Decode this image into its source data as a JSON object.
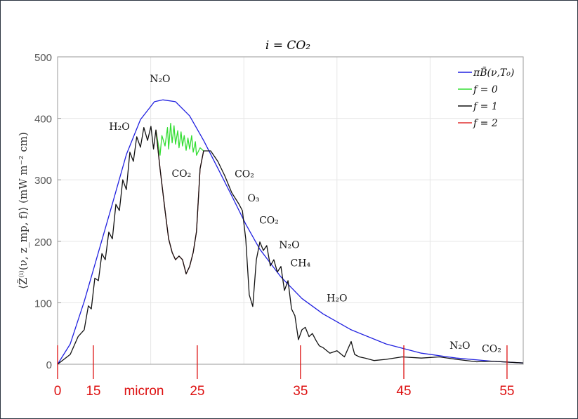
{
  "chart_data": {
    "type": "line",
    "title": "i = CO₂",
    "xlabel": "",
    "ylabel": "⟨Z̃⁽ⁱ⁾(ν, z_mp, f)⟩ (mW m⁻² cm)",
    "xlim": [
      0,
      2500
    ],
    "ylim": [
      0,
      500
    ],
    "yticks": [
      0,
      100,
      200,
      300,
      400,
      500
    ],
    "xgrid": [
      500,
      1000,
      1500,
      2000
    ],
    "grid": true,
    "legend_position": "top-right",
    "series": [
      {
        "name": "πB̃(ν,T₀)",
        "color": "#2020e0",
        "points": [
          [
            0,
            0
          ],
          [
            68,
            33
          ],
          [
            143,
            102
          ],
          [
            219,
            182
          ],
          [
            294,
            261
          ],
          [
            369,
            341
          ],
          [
            445,
            398
          ],
          [
            520,
            427
          ],
          [
            566,
            430
          ],
          [
            633,
            427
          ],
          [
            709,
            404
          ],
          [
            784,
            364
          ],
          [
            860,
            319
          ],
          [
            935,
            274
          ],
          [
            1010,
            228
          ],
          [
            1086,
            187
          ],
          [
            1199,
            142
          ],
          [
            1312,
            107
          ],
          [
            1425,
            82
          ],
          [
            1576,
            56
          ],
          [
            1764,
            33
          ],
          [
            1953,
            18
          ],
          [
            2141,
            10
          ],
          [
            2330,
            5
          ],
          [
            2500,
            2
          ]
        ]
      },
      {
        "name": "f = 0",
        "color": "#33dd33",
        "points": [
          [
            528,
            381
          ],
          [
            550,
            340
          ],
          [
            560,
            372
          ],
          [
            577,
            355
          ],
          [
            590,
            385
          ],
          [
            596,
            350
          ],
          [
            607,
            392
          ],
          [
            615,
            360
          ],
          [
            625,
            388
          ],
          [
            633,
            358
          ],
          [
            645,
            380
          ],
          [
            652,
            352
          ],
          [
            663,
            378
          ],
          [
            671,
            355
          ],
          [
            680,
            372
          ],
          [
            690,
            348
          ],
          [
            700,
            368
          ],
          [
            709,
            350
          ],
          [
            720,
            372
          ],
          [
            728,
            345
          ],
          [
            740,
            362
          ],
          [
            746,
            340
          ],
          [
            765,
            352
          ],
          [
            784,
            347
          ]
        ]
      },
      {
        "name": "f = 2",
        "color": "#e03030",
        "points": [
          [
            528,
            381
          ],
          [
            550,
            318
          ],
          [
            577,
            250
          ],
          [
            596,
            204
          ],
          [
            615,
            182
          ],
          [
            633,
            170
          ],
          [
            652,
            176
          ],
          [
            671,
            170
          ],
          [
            690,
            147
          ],
          [
            709,
            159
          ],
          [
            728,
            182
          ],
          [
            746,
            216
          ],
          [
            765,
            318
          ],
          [
            784,
            347
          ]
        ]
      },
      {
        "name": "f = 1",
        "color": "#111111",
        "points": [
          [
            0,
            0
          ],
          [
            68,
            16
          ],
          [
            110,
            45
          ],
          [
            143,
            56
          ],
          [
            165,
            95
          ],
          [
            181,
            90
          ],
          [
            200,
            140
          ],
          [
            219,
            136
          ],
          [
            238,
            180
          ],
          [
            256,
            170
          ],
          [
            275,
            215
          ],
          [
            294,
            204
          ],
          [
            313,
            260
          ],
          [
            332,
            250
          ],
          [
            350,
            300
          ],
          [
            369,
            284
          ],
          [
            388,
            345
          ],
          [
            407,
            330
          ],
          [
            425,
            370
          ],
          [
            445,
            353
          ],
          [
            463,
            385
          ],
          [
            483,
            364
          ],
          [
            501,
            387
          ],
          [
            515,
            350
          ],
          [
            528,
            381
          ],
          [
            550,
            318
          ],
          [
            577,
            250
          ],
          [
            596,
            204
          ],
          [
            615,
            182
          ],
          [
            633,
            170
          ],
          [
            652,
            176
          ],
          [
            671,
            170
          ],
          [
            690,
            147
          ],
          [
            709,
            159
          ],
          [
            728,
            182
          ],
          [
            746,
            216
          ],
          [
            765,
            318
          ],
          [
            784,
            347
          ],
          [
            822,
            347
          ],
          [
            860,
            330
          ],
          [
            897,
            307
          ],
          [
            935,
            279
          ],
          [
            973,
            261
          ],
          [
            992,
            250
          ],
          [
            1010,
            204
          ],
          [
            1029,
            113
          ],
          [
            1048,
            94
          ],
          [
            1067,
            170
          ],
          [
            1086,
            199
          ],
          [
            1105,
            185
          ],
          [
            1123,
            193
          ],
          [
            1142,
            160
          ],
          [
            1161,
            170
          ],
          [
            1180,
            150
          ],
          [
            1199,
            159
          ],
          [
            1218,
            120
          ],
          [
            1237,
            136
          ],
          [
            1256,
            90
          ],
          [
            1274,
            79
          ],
          [
            1293,
            40
          ],
          [
            1312,
            56
          ],
          [
            1330,
            60
          ],
          [
            1350,
            45
          ],
          [
            1368,
            50
          ],
          [
            1387,
            39
          ],
          [
            1405,
            30
          ],
          [
            1425,
            27
          ],
          [
            1462,
            18
          ],
          [
            1500,
            22
          ],
          [
            1540,
            12
          ],
          [
            1576,
            37
          ],
          [
            1595,
            16
          ],
          [
            1620,
            12
          ],
          [
            1651,
            10
          ],
          [
            1700,
            6
          ],
          [
            1764,
            8
          ],
          [
            1850,
            12
          ],
          [
            1953,
            10
          ],
          [
            2050,
            12
          ],
          [
            2141,
            8
          ],
          [
            2250,
            4
          ],
          [
            2330,
            5
          ],
          [
            2500,
            2
          ]
        ]
      }
    ],
    "annotations": [
      {
        "text": "N₂O",
        "x": 550,
        "y": 459
      },
      {
        "text": "H₂O",
        "x": 332,
        "y": 381
      },
      {
        "text": "CO₂",
        "x": 665,
        "y": 305
      },
      {
        "text": "CO₂",
        "x": 1003,
        "y": 304
      },
      {
        "text": "O₃",
        "x": 1052,
        "y": 265
      },
      {
        "text": "CO₂",
        "x": 1135,
        "y": 229
      },
      {
        "text": "N₂O",
        "x": 1244,
        "y": 189
      },
      {
        "text": "CH₄",
        "x": 1304,
        "y": 159
      },
      {
        "text": "H₂O",
        "x": 1500,
        "y": 102
      },
      {
        "text": "N₂O",
        "x": 2160,
        "y": 25
      },
      {
        "text": "CO₂",
        "x": 2330,
        "y": 20
      }
    ],
    "micron_markers": [
      {
        "label": "0",
        "x": 0
      },
      {
        "label": "15",
        "x": 192
      },
      {
        "label": "25",
        "x": 750
      },
      {
        "label": "35",
        "x": 1304
      },
      {
        "label": "45",
        "x": 1859
      },
      {
        "label": "55",
        "x": 2413
      }
    ],
    "micron_unit_label": "micron",
    "micron_color": "#dd1111"
  }
}
